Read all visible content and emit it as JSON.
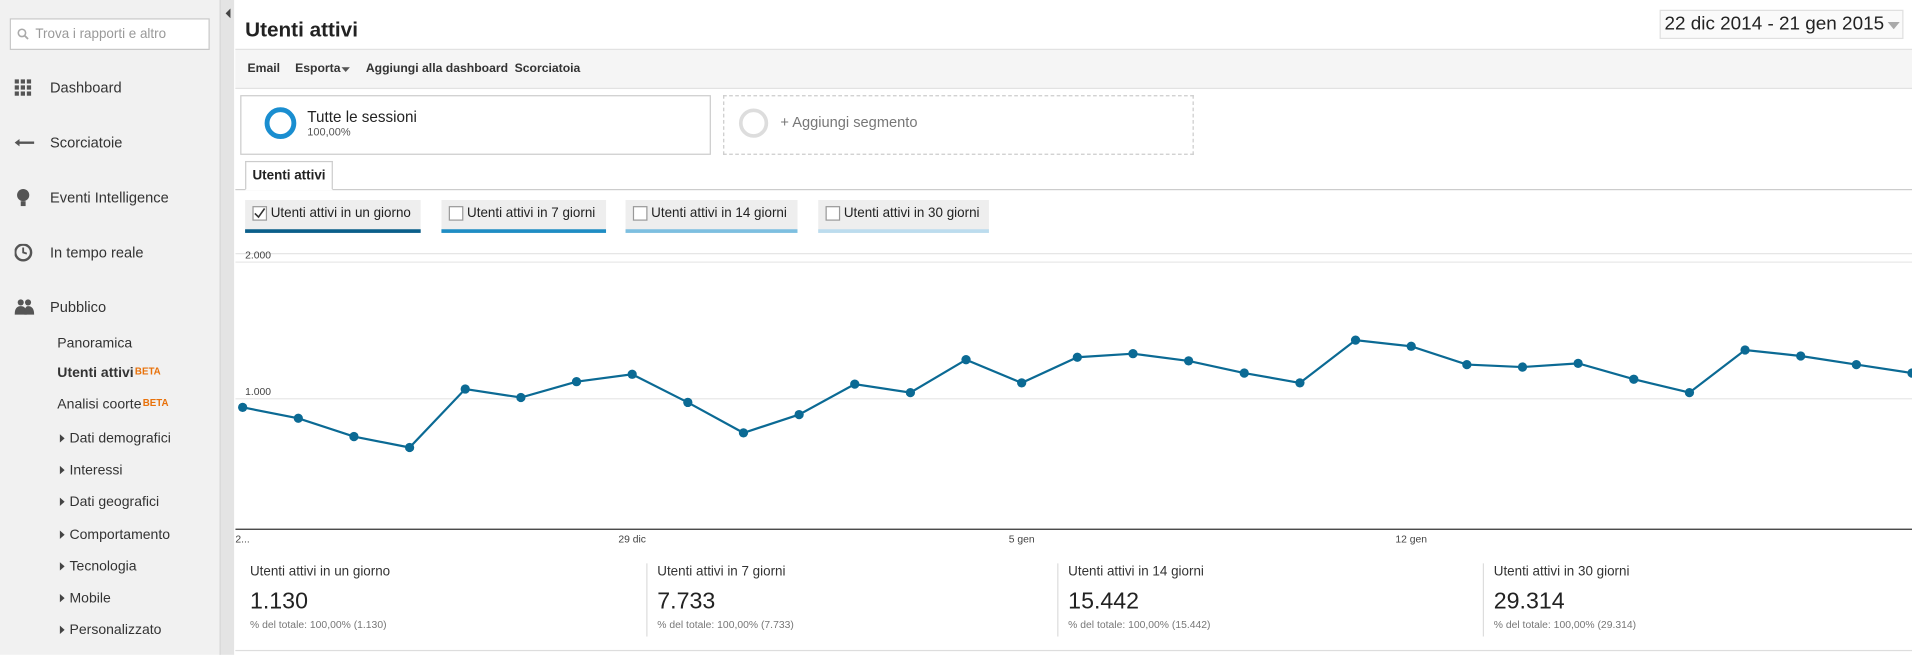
{
  "sidebar": {
    "search_placeholder": "Trova i rapporti e altro",
    "nav": [
      "Dashboard",
      "Scorciatoie",
      "Eventi Intelligence",
      "In tempo reale",
      "Pubblico"
    ],
    "sub": [
      {
        "label": "Panoramica"
      },
      {
        "label": "Utenti attivi",
        "badge": "BETA"
      },
      {
        "label": "Analisi coorte",
        "badge": "BETA"
      },
      {
        "label": "Dati demografici"
      },
      {
        "label": "Interessi"
      },
      {
        "label": "Dati geografici"
      },
      {
        "label": "Comportamento"
      },
      {
        "label": "Tecnologia"
      },
      {
        "label": "Mobile"
      },
      {
        "label": "Personalizzato"
      }
    ]
  },
  "header": {
    "title": "Utenti attivi",
    "date_range": "22 dic 2014 - 21 gen 2015"
  },
  "toolbar": [
    "Email",
    "Esporta",
    "Aggiungi alla dashboard",
    "Scorciatoia"
  ],
  "segments": {
    "name": "Tutte le sessioni",
    "share": "100,00%",
    "add": "+ Aggiungi segmento"
  },
  "tab": "Utenti attivi",
  "toggles": [
    {
      "label": "Utenti attivi in un giorno",
      "checked": true,
      "color": "#0b5f8a"
    },
    {
      "label": "Utenti attivi in 7 giorni",
      "checked": false,
      "color": "#1f8dc4"
    },
    {
      "label": "Utenti attivi in 14 giorni",
      "checked": false,
      "color": "#7dbfe0"
    },
    {
      "label": "Utenti attivi in 30 giorni",
      "checked": false,
      "color": "#bcdcee"
    }
  ],
  "chart_data": {
    "type": "line",
    "categories": [
      "2...",
      null,
      null,
      null,
      null,
      null,
      null,
      "29 dic",
      null,
      null,
      null,
      null,
      null,
      null,
      "5 gen",
      null,
      null,
      null,
      null,
      null,
      null,
      "12 gen",
      null,
      null,
      null,
      null,
      null,
      null,
      null,
      null,
      null
    ],
    "series": [
      {
        "name": "Utenti attivi in un giorno",
        "color": "#0b6a94",
        "values": [
          937,
          857,
          723,
          643,
          1071,
          1009,
          1125,
          1179,
          973,
          750,
          884,
          1107,
          1045,
          1286,
          1116,
          1304,
          1330,
          1277,
          1188,
          1116,
          1429,
          1384,
          1250,
          1232,
          1259,
          1143,
          1045,
          1357,
          1313,
          1250,
          1188
        ]
      }
    ],
    "ylim": [
      0,
      2000
    ],
    "yticks": [
      {
        "value": 1000,
        "label": "1.000"
      },
      {
        "value": 2000,
        "label": "2.000"
      }
    ],
    "grid": true
  },
  "summary": [
    {
      "label": "Utenti attivi in un giorno",
      "value": "1.130",
      "note": "% del totale: 100,00% (1.130)"
    },
    {
      "label": "Utenti attivi in 7 giorni",
      "value": "7.733",
      "note": "% del totale: 100,00% (7.733)"
    },
    {
      "label": "Utenti attivi in 14 giorni",
      "value": "15.442",
      "note": "% del totale: 100,00% (15.442)"
    },
    {
      "label": "Utenti attivi in 30 giorni",
      "value": "29.314",
      "note": "% del totale: 100,00% (29.314)"
    }
  ]
}
